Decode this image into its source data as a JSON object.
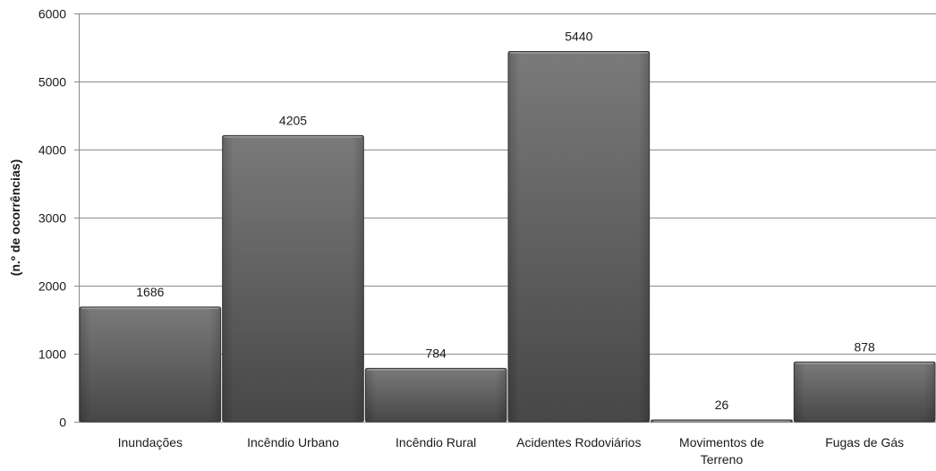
{
  "chart_data": {
    "type": "bar",
    "title": "",
    "xlabel": "",
    "ylabel": "(n.º de ocorrências)",
    "ylim": [
      0,
      6000
    ],
    "yticks": [
      0,
      1000,
      2000,
      3000,
      4000,
      5000,
      6000
    ],
    "grid": true,
    "legend": "none",
    "categories": [
      [
        "Inundações"
      ],
      [
        "Incêndio Urbano"
      ],
      [
        "Incêndio Rural"
      ],
      [
        "Acidentes Rodoviários"
      ],
      [
        "Movimentos de",
        "Terreno"
      ],
      [
        "Fugas de Gás"
      ]
    ],
    "values": [
      1686,
      4205,
      784,
      5440,
      26,
      878
    ],
    "colors": {
      "bar_top": "#7a7a7a",
      "bar_bottom": "#474747",
      "bar_edge": "#3a3a3a",
      "grid": "#8c8c8c"
    }
  }
}
